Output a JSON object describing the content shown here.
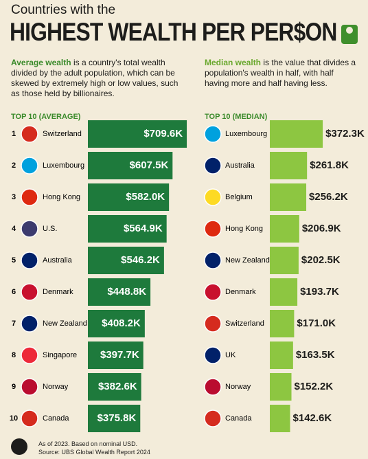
{
  "header": {
    "kicker": "Countries with the",
    "title": "HIGHEST WEALTH PER PER$ON"
  },
  "descriptions": [
    {
      "term": "Average wealth",
      "text": "is a country's total wealth divided by the adult population, which can be skewed by extremely high or low values, such as those held by billionaires."
    },
    {
      "term": "Median wealth",
      "text": "is the value that divides a population's wealth in half, with half having more and half having less."
    }
  ],
  "chart_data": [
    {
      "type": "bar",
      "orientation": "horizontal",
      "title": "TOP 10 (AVERAGE)",
      "color": "#1e7a3c",
      "label_position": "inside",
      "ranks": [
        1,
        2,
        3,
        4,
        5,
        6,
        7,
        8,
        9,
        10
      ],
      "categories": [
        "Switzerland",
        "Luxembourg",
        "Hong Kong",
        "U.S.",
        "Australia",
        "Denmark",
        "New Zealand",
        "Singapore",
        "Norway",
        "Canada"
      ],
      "values": [
        709.6,
        607.5,
        582.0,
        564.9,
        546.2,
        448.8,
        408.2,
        397.7,
        382.6,
        375.8
      ],
      "value_labels": [
        "$709.6K",
        "$607.5K",
        "$582.0K",
        "$564.9K",
        "$546.2K",
        "$448.8K",
        "$408.2K",
        "$397.7K",
        "$382.6K",
        "$375.8K"
      ]
    },
    {
      "type": "bar",
      "orientation": "horizontal",
      "title": "TOP 10 (MEDIAN)",
      "color": "#8dc641",
      "label_position": "outside",
      "categories": [
        "Luxembourg",
        "Australia",
        "Belgium",
        "Hong Kong",
        "New Zealand",
        "Denmark",
        "Switzerland",
        "UK",
        "Norway",
        "Canada"
      ],
      "values": [
        372.3,
        261.8,
        256.2,
        206.9,
        202.5,
        193.7,
        171.0,
        163.5,
        152.2,
        142.6
      ],
      "value_labels": [
        "$372.3K",
        "$261.8K",
        "$256.2K",
        "$206.9K",
        "$202.5K",
        "$193.7K",
        "$171.0K",
        "$163.5K",
        "$152.2K",
        "$142.6K"
      ]
    }
  ],
  "footer": {
    "note": "As of 2023. Based on nominal USD.",
    "source": "Source: UBS Global Wealth Report 2024"
  }
}
